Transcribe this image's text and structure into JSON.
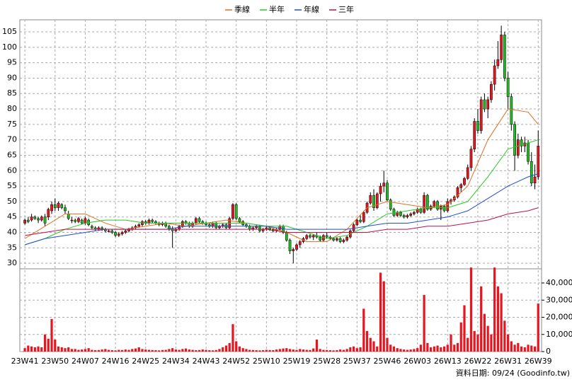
{
  "chart_data": {
    "type": "candlestick",
    "legend": {
      "position": "top"
    },
    "grid": true,
    "xlim": [
      -1.5,
      154
    ],
    "xticks": [
      {
        "value": 0,
        "label": "23W41"
      },
      {
        "value": 9,
        "label": "23W50"
      },
      {
        "value": 18,
        "label": "24W07"
      },
      {
        "value": 27,
        "label": "24W16"
      },
      {
        "value": 36,
        "label": "24W25"
      },
      {
        "value": 45,
        "label": "24W34"
      },
      {
        "value": 54,
        "label": "24W43"
      },
      {
        "value": 63,
        "label": "24W52"
      },
      {
        "value": 72,
        "label": "25W10"
      },
      {
        "value": 81,
        "label": "25W19"
      },
      {
        "value": 90,
        "label": "25W28"
      },
      {
        "value": 99,
        "label": "25W37"
      },
      {
        "value": 108,
        "label": "25W46"
      },
      {
        "value": 117,
        "label": "26W03"
      },
      {
        "value": 126,
        "label": "26W13"
      },
      {
        "value": 135,
        "label": "26W22"
      },
      {
        "value": 144,
        "label": "26W31"
      },
      {
        "value": 153,
        "label": "26W39"
      }
    ],
    "ylim": [
      28.2,
      108.9
    ],
    "yticks": [
      30,
      35,
      40,
      45,
      50,
      55,
      60,
      65,
      70,
      75,
      80,
      85,
      90,
      95,
      100,
      105
    ],
    "up_color": "#e8141e",
    "down_color": "#22bb22",
    "ohlc": [
      [
        43,
        44.5,
        42.5,
        44
      ],
      [
        44,
        45,
        43,
        43.5
      ],
      [
        44,
        46,
        43.5,
        45
      ],
      [
        45,
        45.5,
        44,
        44.5
      ],
      [
        44.5,
        45,
        43,
        44
      ],
      [
        44,
        45.5,
        43.5,
        45
      ],
      [
        45,
        46,
        42,
        43
      ],
      [
        45,
        48,
        44,
        47.5
      ],
      [
        47,
        50,
        46,
        49
      ],
      [
        49,
        51,
        47,
        48
      ],
      [
        48,
        50,
        47,
        49.5
      ],
      [
        49,
        49.5,
        47.5,
        48
      ],
      [
        48,
        49,
        46,
        47
      ],
      [
        46,
        47,
        44,
        44.5
      ],
      [
        44,
        45,
        43,
        44
      ],
      [
        44,
        44.5,
        43,
        43.5
      ],
      [
        43.5,
        45,
        43,
        44.5
      ],
      [
        44,
        44.5,
        42.5,
        43
      ],
      [
        43,
        45,
        42.5,
        44.5
      ],
      [
        44,
        44.5,
        42,
        42.5
      ],
      [
        42,
        42.5,
        41,
        41.5
      ],
      [
        41.5,
        42,
        40.5,
        41
      ],
      [
        41,
        42,
        40.5,
        41.5
      ],
      [
        41.5,
        42,
        40.5,
        41
      ],
      [
        41,
        41.5,
        40,
        40.5
      ],
      [
        40.5,
        41,
        40,
        40.5
      ],
      [
        40.5,
        41,
        39.5,
        40
      ],
      [
        40,
        40.5,
        38.5,
        39
      ],
      [
        39,
        40,
        38.5,
        39.5
      ],
      [
        39.5,
        40.5,
        39,
        40
      ],
      [
        40,
        41,
        39.5,
        40.5
      ],
      [
        40.5,
        41.5,
        40,
        41
      ],
      [
        41,
        42,
        40.5,
        41.5
      ],
      [
        41.5,
        42.5,
        41,
        42
      ],
      [
        42,
        43,
        41.5,
        42.5
      ],
      [
        42.5,
        44,
        42,
        43.5
      ],
      [
        43.5,
        44,
        42.5,
        43
      ],
      [
        43,
        44.5,
        42.5,
        44
      ],
      [
        44,
        44.5,
        43,
        43.5
      ],
      [
        43.5,
        44,
        42.5,
        43
      ],
      [
        43,
        43.5,
        42,
        42.5
      ],
      [
        42.5,
        43.5,
        42,
        43
      ],
      [
        43,
        43.5,
        41.5,
        42
      ],
      [
        42,
        42.5,
        40.5,
        41
      ],
      [
        41,
        42,
        35,
        40.5
      ],
      [
        40.5,
        41.5,
        40,
        41
      ],
      [
        41,
        42.5,
        40.5,
        42
      ],
      [
        42,
        44,
        41.5,
        43.5
      ],
      [
        43.5,
        44,
        42.5,
        43
      ],
      [
        43,
        43.5,
        41.5,
        42
      ],
      [
        42,
        43.5,
        41.5,
        43
      ],
      [
        43,
        45,
        42.5,
        44.5
      ],
      [
        44.5,
        45,
        43,
        43.5
      ],
      [
        43.5,
        44,
        42.5,
        43
      ],
      [
        43,
        43.5,
        42,
        42.5
      ],
      [
        42.5,
        43,
        41.5,
        42
      ],
      [
        42,
        43.5,
        41.5,
        43
      ],
      [
        43,
        43.5,
        41,
        41.5
      ],
      [
        41.5,
        42.5,
        41,
        42
      ],
      [
        42,
        43,
        41.5,
        42.5
      ],
      [
        42.5,
        43,
        41,
        41.5
      ],
      [
        41.5,
        45,
        41,
        44.5
      ],
      [
        44.5,
        49.5,
        44,
        49
      ],
      [
        49,
        49.5,
        44,
        44.5
      ],
      [
        44.5,
        45,
        43,
        43.5
      ],
      [
        43.5,
        44,
        42,
        42.5
      ],
      [
        42.5,
        43,
        41.5,
        42
      ],
      [
        42,
        42.5,
        40.5,
        41
      ],
      [
        41,
        42,
        40.5,
        41.5
      ],
      [
        41.5,
        42.5,
        41,
        42
      ],
      [
        42,
        42.5,
        40,
        40.5
      ],
      [
        40.5,
        41.5,
        40,
        41
      ],
      [
        41,
        42,
        40.5,
        41.5
      ],
      [
        41.5,
        42,
        40.5,
        41
      ],
      [
        41,
        41.5,
        40,
        40.5
      ],
      [
        40.5,
        41.5,
        40,
        41
      ],
      [
        41,
        42.5,
        40.5,
        42
      ],
      [
        42,
        42.5,
        39.5,
        40
      ],
      [
        40,
        40.5,
        37,
        37.5
      ],
      [
        37.5,
        38,
        33,
        34
      ],
      [
        34,
        35,
        30,
        34.5
      ],
      [
        34.5,
        36.5,
        34,
        36
      ],
      [
        36,
        37.5,
        35,
        37
      ],
      [
        37,
        38.5,
        36.5,
        38
      ],
      [
        38,
        39.5,
        37.5,
        39
      ],
      [
        39,
        39.5,
        38,
        38.5
      ],
      [
        38.5,
        39.5,
        37.5,
        39
      ],
      [
        39,
        40,
        38,
        38.5
      ],
      [
        38.5,
        39,
        37,
        37.5
      ],
      [
        37.5,
        39.5,
        37,
        39
      ],
      [
        39,
        40,
        38,
        38.5
      ],
      [
        38.5,
        39,
        37.5,
        38
      ],
      [
        38,
        38.5,
        37,
        37.5
      ],
      [
        37.5,
        38.5,
        37,
        38
      ],
      [
        38,
        38.5,
        36.5,
        37
      ],
      [
        37,
        38,
        36.5,
        37.5
      ],
      [
        37.5,
        39,
        37,
        38.5
      ],
      [
        38.5,
        41,
        38,
        40.5
      ],
      [
        40.5,
        43,
        40,
        42.5
      ],
      [
        42.5,
        44.5,
        42,
        44
      ],
      [
        44,
        45.5,
        43,
        43.5
      ],
      [
        43.5,
        47,
        43,
        46.5
      ],
      [
        46.5,
        50,
        46,
        49.5
      ],
      [
        49.5,
        53,
        49,
        52
      ],
      [
        52,
        54,
        47,
        48
      ],
      [
        48,
        53,
        47.5,
        52.5
      ],
      [
        52.5,
        56,
        50,
        55
      ],
      [
        55,
        60,
        53,
        56
      ],
      [
        56,
        57,
        50,
        50.5
      ],
      [
        50.5,
        51,
        47,
        47.5
      ],
      [
        47.5,
        48,
        45,
        45.5
      ],
      [
        45.5,
        47,
        45,
        46.5
      ],
      [
        46.5,
        47,
        45,
        45.5
      ],
      [
        45.5,
        46,
        44.5,
        45
      ],
      [
        45,
        46,
        44.5,
        45.5
      ],
      [
        45.5,
        46.5,
        45,
        46
      ],
      [
        46,
        47,
        45.5,
        46.5
      ],
      [
        46.5,
        48,
        46,
        47.5
      ],
      [
        47.5,
        48,
        46,
        46.5
      ],
      [
        46.5,
        53,
        46,
        52
      ],
      [
        52,
        52.5,
        47,
        47.5
      ],
      [
        47.5,
        49,
        47,
        48.5
      ],
      [
        48.5,
        50.5,
        48,
        50
      ],
      [
        50,
        50.5,
        47,
        47.5
      ],
      [
        47.5,
        49,
        44,
        48.5
      ],
      [
        48.5,
        49,
        46.5,
        47
      ],
      [
        47,
        51,
        46.5,
        50
      ],
      [
        50,
        51,
        49,
        50.5
      ],
      [
        50.5,
        52,
        50,
        51.5
      ],
      [
        51.5,
        55,
        51,
        54.5
      ],
      [
        54.5,
        56,
        53,
        55.5
      ],
      [
        55.5,
        58,
        55,
        57.5
      ],
      [
        57.5,
        62,
        57,
        61
      ],
      [
        61,
        68,
        60,
        67
      ],
      [
        67,
        77,
        66,
        76
      ],
      [
        76,
        80,
        72,
        73
      ],
      [
        73,
        84,
        72,
        83
      ],
      [
        83,
        85,
        79,
        80
      ],
      [
        80,
        84,
        77,
        83
      ],
      [
        83,
        89,
        82,
        88
      ],
      [
        88,
        96,
        86,
        94
      ],
      [
        94,
        102,
        93,
        96
      ],
      [
        96,
        107,
        95,
        104
      ],
      [
        104,
        105,
        89,
        90
      ],
      [
        90,
        92,
        80,
        84
      ],
      [
        84,
        85,
        73,
        75
      ],
      [
        75,
        76,
        60,
        65
      ],
      [
        65,
        72,
        64,
        70
      ],
      [
        70,
        71,
        66,
        68
      ],
      [
        68,
        71,
        66,
        69
      ],
      [
        69,
        70,
        62,
        63
      ],
      [
        63,
        66,
        55,
        56
      ],
      [
        56,
        62,
        54,
        58
      ],
      [
        58,
        73,
        57,
        68
      ]
    ],
    "ma_x": [
      0,
      6,
      12,
      18,
      24,
      30,
      36,
      42,
      48,
      54,
      60,
      66,
      72,
      78,
      84,
      90,
      96,
      102,
      108,
      114,
      120,
      126,
      132,
      138,
      144,
      150,
      153
    ],
    "series": [
      {
        "name": "季線",
        "color": "#e07020",
        "values": [
          38,
          42,
          46,
          46,
          43,
          41,
          42,
          43,
          42,
          43,
          44,
          43,
          42,
          40,
          37,
          37,
          41,
          48,
          50,
          49,
          48,
          49,
          55,
          70,
          80,
          79,
          75
        ]
      },
      {
        "name": "半年",
        "color": "#22cc22",
        "values": [
          36,
          38,
          41,
          43,
          44,
          44,
          43,
          43,
          43,
          43,
          43,
          43,
          42,
          42,
          40,
          38,
          39,
          42,
          46,
          47,
          48,
          48,
          50,
          58,
          67,
          69,
          70
        ]
      },
      {
        "name": "年線",
        "color": "#2050d0",
        "values": [
          36,
          38,
          39,
          40,
          41,
          41,
          41,
          41,
          42,
          42,
          42,
          42,
          42,
          41,
          41,
          41,
          41,
          42,
          43,
          43,
          44,
          45,
          47,
          51,
          55,
          58,
          59
        ]
      },
      {
        "name": "三年",
        "color": "#c0104a",
        "values": [
          39,
          40,
          41,
          41,
          41,
          41,
          41,
          41,
          41,
          41,
          41,
          41,
          41,
          40,
          40,
          40,
          40,
          40,
          41,
          41,
          42,
          42,
          43,
          44,
          46,
          47,
          48
        ]
      }
    ],
    "volume": {
      "color": "#e8141e",
      "ylim": [
        0,
        48250
      ],
      "yticks": [
        0,
        {
          "value": 10000,
          "label": "10,000"
        },
        {
          "value": 20000,
          "label": "20,000"
        },
        {
          "value": 30000,
          "label": "30,000"
        },
        {
          "value": 40000,
          "label": "40,000"
        }
      ],
      "values": [
        2000,
        3500,
        3000,
        2500,
        3000,
        2500,
        10000,
        7500,
        19000,
        7000,
        3000,
        2500,
        2000,
        2500,
        1500,
        1500,
        1000,
        1200,
        1500,
        2000,
        1000,
        800,
        900,
        1200,
        1500,
        1000,
        800,
        700,
        1000,
        900,
        1200,
        1000,
        1500,
        1800,
        2500,
        1500,
        1200,
        1000,
        900,
        800,
        700,
        900,
        1000,
        1500,
        2000,
        1200,
        1000,
        1500,
        1800,
        1200,
        1000,
        800,
        900,
        1200,
        1000,
        800,
        700,
        900,
        1500,
        2500,
        3500,
        5000,
        16000,
        6000,
        3000,
        2000,
        1500,
        1000,
        900,
        800,
        700,
        800,
        1000,
        900,
        800,
        1200,
        1500,
        1800,
        2000,
        1500,
        1200,
        1000,
        1500,
        1200,
        1000,
        900,
        1800,
        7000,
        1500,
        1000,
        900,
        800,
        700,
        800,
        1200,
        1000,
        1500,
        2500,
        3000,
        2000,
        2500,
        25000,
        12000,
        8000,
        6000,
        3000,
        46000,
        41000,
        8000,
        4000,
        3000,
        2000,
        1500,
        1200,
        1000,
        1200,
        1500,
        2000,
        4000,
        33000,
        5000,
        2500,
        3000,
        3500,
        2500,
        3000,
        4000,
        10000,
        4000,
        5000,
        17000,
        27000,
        8000,
        49000,
        12000,
        10000,
        38000,
        22000,
        15000,
        10000,
        49000,
        38000,
        34000,
        18000,
        10000,
        6000,
        4000,
        5000,
        3000,
        2500,
        4000,
        3500,
        3000,
        28000
      ]
    },
    "footer": "資料日期: 09/24 (Goodinfo.tw)"
  }
}
